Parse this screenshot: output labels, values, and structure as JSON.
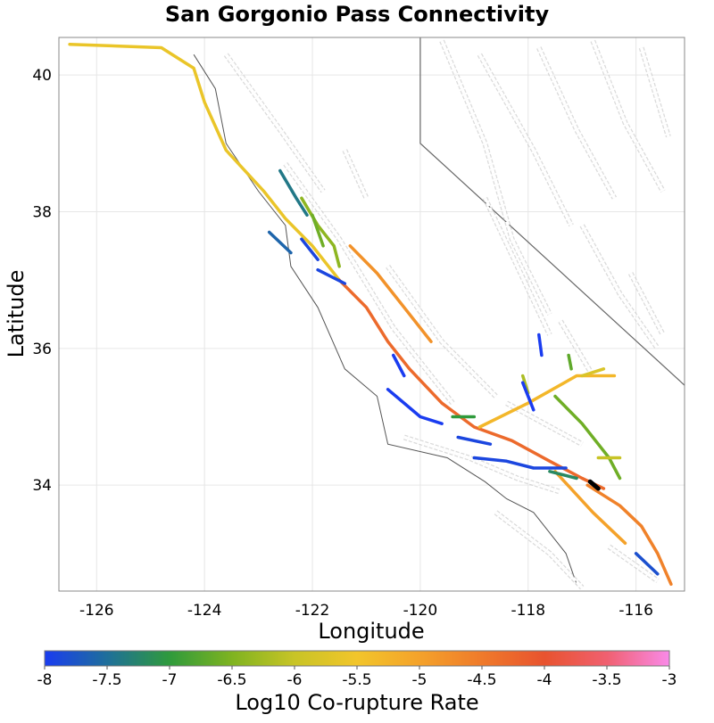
{
  "title": "San Gorgonio Pass Connectivity",
  "x_axis": {
    "label": "Longitude",
    "range": [
      -126.7,
      -115.1
    ],
    "ticks": [
      -126,
      -124,
      -122,
      -120,
      -118,
      -116
    ],
    "tick_labels": [
      "-126",
      "-124",
      "-122",
      "-120",
      "-118",
      "-116"
    ]
  },
  "y_axis": {
    "label": "Latitude",
    "range": [
      32.45,
      40.55
    ],
    "ticks": [
      34,
      36,
      38,
      40
    ],
    "tick_labels": [
      "34",
      "36",
      "38",
      "40"
    ]
  },
  "grid": true,
  "colorbar": {
    "label": "Log10 Co-rupture Rate",
    "range": [
      -8,
      -3
    ],
    "ticks": [
      -8,
      -7.5,
      -7,
      -6.5,
      -6,
      -5.5,
      -5,
      -4.5,
      -4,
      -3.5,
      -3
    ],
    "tick_labels": [
      "-8",
      "-7.5",
      "-7",
      "-6.5",
      "-6",
      "-5.5",
      "-5",
      "-4.5",
      "-4",
      "-3.5",
      "-3"
    ],
    "stops": [
      {
        "value": -8,
        "color": "#1a3cf0"
      },
      {
        "value": -7.5,
        "color": "#1f6f9a"
      },
      {
        "value": -7,
        "color": "#2f9a3c"
      },
      {
        "value": -6.5,
        "color": "#7fb320"
      },
      {
        "value": -6,
        "color": "#c8c426"
      },
      {
        "value": -5.5,
        "color": "#f2c52a"
      },
      {
        "value": -5,
        "color": "#f4a22a"
      },
      {
        "value": -4.5,
        "color": "#ef7a2a"
      },
      {
        "value": -4,
        "color": "#e8532f"
      },
      {
        "value": -3.5,
        "color": "#f06070"
      },
      {
        "value": -3,
        "color": "#f98ae8"
      }
    ]
  },
  "colors": {
    "coastline": "#555555",
    "state_border": "#666666",
    "background_fault": "#bbbbbb",
    "nucleation_section": "#000000"
  },
  "chart_data": {
    "type": "map",
    "geography": {
      "california_border": [
        [
          -120.0,
          40.55
        ],
        [
          -120.0,
          39.0
        ],
        [
          -114.6,
          35.1
        ]
      ],
      "coastline": [
        [
          -124.2,
          40.3
        ],
        [
          -123.8,
          39.8
        ],
        [
          -123.6,
          39.0
        ],
        [
          -123.0,
          38.3
        ],
        [
          -122.5,
          37.8
        ],
        [
          -122.4,
          37.2
        ],
        [
          -121.9,
          36.6
        ],
        [
          -121.4,
          35.7
        ],
        [
          -120.8,
          35.3
        ],
        [
          -120.6,
          34.6
        ],
        [
          -119.5,
          34.4
        ],
        [
          -118.8,
          34.05
        ],
        [
          -118.4,
          33.8
        ],
        [
          -117.9,
          33.6
        ],
        [
          -117.3,
          33.0
        ],
        [
          -117.1,
          32.55
        ]
      ]
    },
    "background_faults": [
      [
        [
          -123.6,
          40.3
        ],
        [
          -122.6,
          39.2
        ],
        [
          -121.8,
          38.3
        ]
      ],
      [
        [
          -122.5,
          38.7
        ],
        [
          -121.5,
          37.6
        ],
        [
          -120.5,
          36.3
        ],
        [
          -119.4,
          35.2
        ]
      ],
      [
        [
          -121.4,
          38.9
        ],
        [
          -121.0,
          38.2
        ]
      ],
      [
        [
          -120.6,
          37.2
        ],
        [
          -119.6,
          36.1
        ],
        [
          -118.6,
          35.3
        ]
      ],
      [
        [
          -118.4,
          35.2
        ],
        [
          -117.0,
          34.6
        ]
      ],
      [
        [
          -120.3,
          34.7
        ],
        [
          -119.1,
          34.4
        ],
        [
          -118.2,
          34.1
        ],
        [
          -117.4,
          33.9
        ]
      ],
      [
        [
          -118.6,
          33.6
        ],
        [
          -117.6,
          33.0
        ],
        [
          -117.0,
          32.5
        ]
      ],
      [
        [
          -116.5,
          33.1
        ],
        [
          -115.6,
          32.6
        ]
      ],
      [
        [
          -119.6,
          40.5
        ],
        [
          -118.8,
          39.0
        ],
        [
          -118.3,
          37.6
        ],
        [
          -117.6,
          36.5
        ]
      ],
      [
        [
          -118.9,
          40.3
        ],
        [
          -117.9,
          38.9
        ],
        [
          -117.2,
          37.8
        ]
      ],
      [
        [
          -117.8,
          40.4
        ],
        [
          -117.1,
          39.2
        ],
        [
          -116.4,
          38.2
        ]
      ],
      [
        [
          -116.8,
          40.5
        ],
        [
          -116.2,
          39.3
        ],
        [
          -115.5,
          38.3
        ]
      ],
      [
        [
          -115.9,
          40.4
        ],
        [
          -115.4,
          39.1
        ]
      ],
      [
        [
          -118.8,
          38.2
        ],
        [
          -118.2,
          37.2
        ],
        [
          -117.6,
          36.2
        ]
      ],
      [
        [
          -117.0,
          37.8
        ],
        [
          -116.3,
          36.8
        ],
        [
          -115.6,
          36.0
        ]
      ],
      [
        [
          -116.1,
          37.1
        ],
        [
          -115.5,
          36.2
        ]
      ],
      [
        [
          -117.4,
          36.4
        ],
        [
          -116.8,
          35.6
        ]
      ]
    ],
    "ruptures": [
      {
        "value": -5.6,
        "points": [
          [
            -126.5,
            40.45
          ],
          [
            -124.8,
            40.4
          ],
          [
            -124.2,
            40.1
          ],
          [
            -124.0,
            39.6
          ],
          [
            -123.6,
            38.9
          ],
          [
            -122.9,
            38.3
          ],
          [
            -122.5,
            37.9
          ],
          [
            -122.0,
            37.5
          ],
          [
            -121.5,
            37.0
          ]
        ]
      },
      {
        "value": -4.3,
        "points": [
          [
            -121.5,
            37.0
          ],
          [
            -121.0,
            36.6
          ],
          [
            -120.6,
            36.1
          ],
          [
            -120.2,
            35.7
          ],
          [
            -119.6,
            35.2
          ],
          [
            -119.0,
            34.85
          ],
          [
            -118.3,
            34.65
          ],
          [
            -117.6,
            34.35
          ],
          [
            -117.0,
            34.1
          ],
          [
            -116.6,
            33.95
          ]
        ]
      },
      {
        "value": -4.6,
        "points": [
          [
            -116.9,
            34.0
          ],
          [
            -116.3,
            33.7
          ],
          [
            -115.9,
            33.4
          ],
          [
            -115.6,
            33.0
          ],
          [
            -115.35,
            32.55
          ]
        ]
      },
      {
        "value": -5.0,
        "points": [
          [
            -117.5,
            34.2
          ],
          [
            -116.8,
            33.6
          ],
          [
            -116.2,
            33.15
          ]
        ]
      },
      {
        "value": -4.8,
        "points": [
          [
            -121.3,
            37.5
          ],
          [
            -120.8,
            37.1
          ],
          [
            -120.3,
            36.6
          ],
          [
            -119.8,
            36.1
          ]
        ]
      },
      {
        "value": -5.3,
        "points": [
          [
            -118.9,
            34.85
          ],
          [
            -118.0,
            35.2
          ],
          [
            -117.1,
            35.6
          ],
          [
            -116.4,
            35.6
          ]
        ]
      },
      {
        "value": -5.8,
        "points": [
          [
            -117.0,
            35.6
          ],
          [
            -116.6,
            35.7
          ]
        ]
      },
      {
        "value": -6.4,
        "points": [
          [
            -122.2,
            38.2
          ],
          [
            -121.9,
            37.8
          ],
          [
            -121.6,
            37.5
          ],
          [
            -121.5,
            37.2
          ]
        ]
      },
      {
        "value": -6.6,
        "points": [
          [
            -122.0,
            37.95
          ],
          [
            -121.8,
            37.5
          ]
        ]
      },
      {
        "value": -6.6,
        "points": [
          [
            -117.5,
            35.3
          ],
          [
            -117.0,
            34.9
          ],
          [
            -116.5,
            34.4
          ],
          [
            -116.3,
            34.1
          ]
        ]
      },
      {
        "value": -6.2,
        "points": [
          [
            -118.1,
            35.6
          ],
          [
            -118.0,
            35.35
          ]
        ]
      },
      {
        "value": -6.7,
        "points": [
          [
            -117.25,
            35.9
          ],
          [
            -117.2,
            35.7
          ]
        ]
      },
      {
        "value": -7.4,
        "points": [
          [
            -122.6,
            38.6
          ],
          [
            -122.3,
            38.2
          ],
          [
            -122.1,
            37.95
          ]
        ]
      },
      {
        "value": -7.6,
        "points": [
          [
            -122.8,
            37.7
          ],
          [
            -122.4,
            37.4
          ]
        ]
      },
      {
        "value": -7.9,
        "points": [
          [
            -122.2,
            37.6
          ],
          [
            -121.9,
            37.3
          ]
        ]
      },
      {
        "value": -7.9,
        "points": [
          [
            -121.9,
            37.15
          ],
          [
            -121.4,
            36.95
          ]
        ]
      },
      {
        "value": -8.0,
        "points": [
          [
            -120.5,
            35.9
          ],
          [
            -120.3,
            35.6
          ]
        ]
      },
      {
        "value": -8.0,
        "points": [
          [
            -120.6,
            35.4
          ],
          [
            -120.0,
            35.0
          ],
          [
            -119.6,
            34.9
          ]
        ]
      },
      {
        "value": -7.0,
        "points": [
          [
            -119.4,
            35.0
          ],
          [
            -119.0,
            35.0
          ]
        ]
      },
      {
        "value": -7.9,
        "points": [
          [
            -119.3,
            34.7
          ],
          [
            -118.7,
            34.6
          ]
        ]
      },
      {
        "value": -7.9,
        "points": [
          [
            -119.0,
            34.4
          ],
          [
            -118.4,
            34.35
          ],
          [
            -117.9,
            34.25
          ],
          [
            -117.3,
            34.25
          ]
        ]
      },
      {
        "value": -8.0,
        "points": [
          [
            -118.1,
            35.5
          ],
          [
            -117.9,
            35.1
          ]
        ]
      },
      {
        "value": -8.0,
        "points": [
          [
            -117.8,
            36.2
          ],
          [
            -117.75,
            35.9
          ]
        ]
      },
      {
        "value": -7.8,
        "points": [
          [
            -116.0,
            33.0
          ],
          [
            -115.6,
            32.7
          ]
        ]
      },
      {
        "value": -7.2,
        "points": [
          [
            -117.6,
            34.2
          ],
          [
            -117.1,
            34.1
          ]
        ]
      },
      {
        "value": -6.0,
        "points": [
          [
            -116.7,
            34.4
          ],
          [
            -116.3,
            34.4
          ]
        ]
      }
    ],
    "nucleation_section": [
      [
        -116.85,
        34.05
      ],
      [
        -116.7,
        33.95
      ]
    ]
  }
}
